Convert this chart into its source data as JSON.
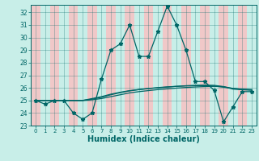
{
  "title": "",
  "xlabel": "Humidex (Indice chaleur)",
  "bg_color": "#c8eee8",
  "grid_bg_color": "#f0c8c8",
  "line_color": "#006666",
  "spine_color": "#006666",
  "xlim": [
    -0.5,
    23.5
  ],
  "ylim": [
    23,
    32.6
  ],
  "yticks": [
    23,
    24,
    25,
    26,
    27,
    28,
    29,
    30,
    31,
    32
  ],
  "xticks": [
    0,
    1,
    2,
    3,
    4,
    5,
    6,
    7,
    8,
    9,
    10,
    11,
    12,
    13,
    14,
    15,
    16,
    17,
    18,
    19,
    20,
    21,
    22,
    23
  ],
  "series1_x": [
    0,
    1,
    2,
    3,
    4,
    5,
    6,
    7,
    8,
    9,
    10,
    11,
    12,
    13,
    14,
    15,
    16,
    17,
    18,
    19,
    20,
    21,
    22,
    23
  ],
  "series1_y": [
    25,
    24.7,
    25,
    25,
    24,
    23.5,
    24,
    26.7,
    29,
    29.5,
    31,
    28.5,
    28.5,
    30.5,
    32.5,
    31,
    29,
    26.5,
    26.5,
    25.8,
    23.3,
    24.5,
    25.7,
    25.7
  ],
  "series2_y": [
    25,
    25,
    25,
    25,
    25,
    25,
    25.05,
    25.15,
    25.3,
    25.45,
    25.6,
    25.7,
    25.78,
    25.86,
    25.92,
    25.98,
    26.03,
    26.07,
    26.1,
    26.12,
    26.1,
    25.9,
    25.85,
    25.8
  ],
  "series3_y": [
    25,
    25,
    25,
    25,
    25,
    25,
    25.1,
    25.25,
    25.45,
    25.62,
    25.76,
    25.86,
    25.94,
    26.0,
    26.06,
    26.12,
    26.17,
    26.2,
    26.22,
    26.2,
    26.1,
    25.95,
    25.88,
    25.85
  ],
  "series4_y": [
    25,
    25,
    25,
    25,
    25,
    25,
    25.15,
    25.3,
    25.5,
    25.65,
    25.78,
    25.87,
    25.95,
    26.02,
    26.08,
    26.12,
    26.15,
    26.17,
    26.18,
    26.14,
    26.05,
    25.96,
    25.89,
    25.86
  ]
}
